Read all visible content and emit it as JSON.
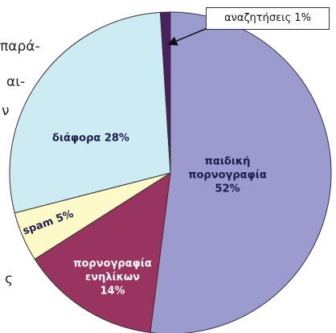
{
  "chart_data": {
    "type": "pie",
    "categories": [
      "παιδική πορνογραφία",
      "πορνογραφία ενηλίκων",
      "spam",
      "διάφορα",
      "αναζητήσεις"
    ],
    "values": [
      52,
      14,
      5,
      28,
      1
    ],
    "value_labels": [
      "52%",
      "14%",
      "5%",
      "28%",
      "1%"
    ],
    "colors": [
      "#9b9bcf",
      "#99335f",
      "#fdf9c8",
      "#cdebf2",
      "#4a2060"
    ]
  },
  "body_text": [
    "παρά-",
    "αι-",
    "ν",
    "ς"
  ]
}
